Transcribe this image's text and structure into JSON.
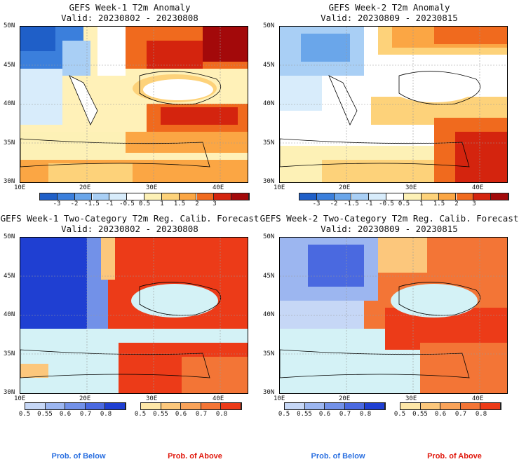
{
  "panels": [
    {
      "id": "w1a",
      "title": "GEFS Week-1 T2m Anomaly",
      "valid": "Valid: 20230802 - 20230808"
    },
    {
      "id": "w2a",
      "title": "GEFS Week-2 T2m Anomaly",
      "valid": "Valid: 20230809 - 20230815"
    },
    {
      "id": "w1p",
      "title": "GEFS Week-1 Two-Category T2m Reg. Calib. Forecast",
      "valid": "Valid: 20230802 - 20230808"
    },
    {
      "id": "w2p",
      "title": "GEFS Week-2 Two-Category T2m Reg. Calib. Forecast",
      "valid": "Valid: 20230809 - 20230815"
    }
  ],
  "axes": {
    "lat_ticks": [
      "50N",
      "45N",
      "40N",
      "35N",
      "30N"
    ],
    "lon_ticks": [
      "10E",
      "20E",
      "30E",
      "40E"
    ]
  },
  "anomaly_colorbar": {
    "labels": [
      "-3",
      "-2",
      "-1.5",
      "-1",
      "-0.5",
      "0.5",
      "1",
      "1.5",
      "2",
      "3"
    ],
    "colors": [
      "#1f5fc8",
      "#3b7fdc",
      "#6aa6ea",
      "#a9cff5",
      "#d8ecfb",
      "#ffffff",
      "#fdf1b6",
      "#fdd27a",
      "#fba644",
      "#f06a1e",
      "#d4240e",
      "#a3090a"
    ]
  },
  "prob_colorbar": {
    "below_labels": [
      "0.5",
      "0.55",
      "0.6",
      "0.7",
      "0.8"
    ],
    "below_colors": [
      "#c6d7f6",
      "#9cb6f0",
      "#7291e8",
      "#4a69e0",
      "#1f3fd2"
    ],
    "above_labels": [
      "0.5",
      "0.55",
      "0.6",
      "0.7",
      "0.8"
    ],
    "above_colors": [
      "#fde7a8",
      "#fcc77c",
      "#f9a35a",
      "#f37536",
      "#ec3b18"
    ]
  },
  "prob_legend": {
    "below": "Prob. of Below",
    "above": "Prob. of Above",
    "below_color": "#2a6fe0",
    "above_color": "#e0190e"
  }
}
